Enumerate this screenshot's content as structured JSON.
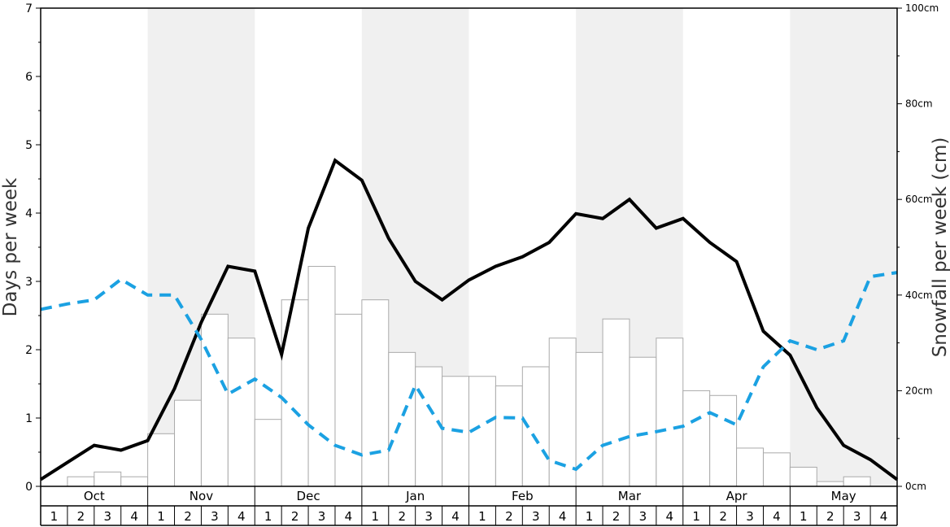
{
  "chart_data": {
    "type": "bar+line",
    "title": "",
    "months": [
      "Oct",
      "Nov",
      "Dec",
      "Jan",
      "Feb",
      "Mar",
      "Apr",
      "May"
    ],
    "weeks_per_month": [
      "1",
      "2",
      "3",
      "4"
    ],
    "y_left": {
      "label": "Days per week",
      "range": [
        0,
        7
      ],
      "ticks": [
        "0",
        "1",
        "2",
        "3",
        "4",
        "5",
        "6",
        "7"
      ]
    },
    "y_right": {
      "label": "Snowfall per week (cm)",
      "range": [
        0,
        100
      ],
      "ticks": [
        "0cm",
        "20cm",
        "40cm",
        "60cm",
        "80cm",
        "100cm"
      ]
    },
    "alternate_month_shading": "#f0f0f0",
    "series": [
      {
        "kind": "bar",
        "axis": "right",
        "color": "#ffffff",
        "stroke": "#aaaaaa",
        "values": [
          0,
          2,
          3,
          2,
          11,
          18,
          36,
          31,
          14,
          39,
          46,
          36,
          39,
          28,
          25,
          23,
          23,
          21,
          25,
          31,
          28,
          35,
          27,
          31,
          20,
          19,
          8,
          7,
          4,
          1,
          2,
          0
        ]
      },
      {
        "kind": "line",
        "axis": "left",
        "color": "#000000",
        "dash": "solid",
        "values": [
          0.1,
          0.35,
          0.6,
          0.53,
          0.67,
          1.43,
          2.4,
          3.22,
          3.15,
          1.93,
          3.78,
          4.77,
          4.48,
          3.63,
          3.0,
          2.73,
          3.02,
          3.22,
          3.36,
          3.57,
          3.99,
          3.92,
          4.2,
          3.78,
          3.92,
          3.57,
          3.29,
          2.27,
          1.92,
          1.15,
          0.6,
          0.39,
          0.1
        ]
      },
      {
        "kind": "line",
        "axis": "left",
        "color": "#1ba1e2",
        "dash": "dashed",
        "values": [
          2.59,
          2.67,
          2.73,
          3.03,
          2.8,
          2.8,
          2.15,
          1.35,
          1.57,
          1.3,
          0.9,
          0.6,
          0.46,
          0.53,
          1.48,
          0.85,
          0.79,
          1.01,
          1.0,
          0.38,
          0.25,
          0.6,
          0.73,
          0.8,
          0.88,
          1.08,
          0.9,
          1.75,
          2.13,
          2.0,
          2.13,
          3.07,
          3.13
        ]
      }
    ]
  }
}
